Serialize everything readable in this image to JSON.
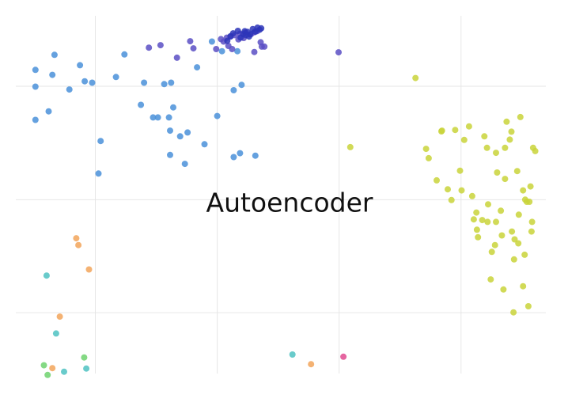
{
  "chart_data": {
    "type": "scatter",
    "title": "Autoencoder",
    "xlabel": "",
    "ylabel": "",
    "xlim": [
      0,
      100
    ],
    "ylim": [
      0,
      100
    ],
    "grid": true,
    "x_gridlines": [
      15,
      38,
      61,
      84
    ],
    "y_gridlines": [
      17,
      48.6,
      80.3
    ],
    "legend": "none",
    "series": [
      {
        "color": "#4a90d9",
        "points": [
          [
            3.7,
            80.2
          ],
          [
            3.7,
            84.9
          ],
          [
            3.7,
            70.9
          ],
          [
            6.2,
            73.3
          ],
          [
            6.9,
            83.5
          ],
          [
            7.3,
            89.1
          ],
          [
            10.1,
            79.4
          ],
          [
            12.1,
            86.2
          ],
          [
            13,
            81.7
          ],
          [
            14.4,
            81.3
          ],
          [
            15.6,
            55.9
          ],
          [
            16,
            65
          ],
          [
            18.9,
            82.9
          ],
          [
            20.5,
            89.2
          ],
          [
            23.6,
            75.1
          ],
          [
            24.2,
            81.3
          ],
          [
            25.9,
            71.6
          ],
          [
            26.8,
            71.6
          ],
          [
            28,
            80.9
          ],
          [
            28.9,
            71.6
          ],
          [
            29.1,
            67.9
          ],
          [
            29.1,
            61.1
          ],
          [
            29.3,
            81.3
          ],
          [
            29.7,
            74.4
          ],
          [
            31,
            66.3
          ],
          [
            31.9,
            58.6
          ],
          [
            32.4,
            67.4
          ],
          [
            34.2,
            85.6
          ],
          [
            35.6,
            64.1
          ],
          [
            37,
            92.8
          ],
          [
            38,
            72
          ],
          [
            38.9,
            90.1
          ],
          [
            41.1,
            79.2
          ],
          [
            41.1,
            60.5
          ],
          [
            41.8,
            90.1
          ],
          [
            42.3,
            61.6
          ],
          [
            42.6,
            80.7
          ],
          [
            45.2,
            60.9
          ]
        ]
      },
      {
        "color": "#5b4fc4",
        "points": [
          [
            25.1,
            91.1
          ],
          [
            27.3,
            91.8
          ],
          [
            30.4,
            88.3
          ],
          [
            32.9,
            92.9
          ],
          [
            33.5,
            90.9
          ],
          [
            37.8,
            90.7
          ],
          [
            38.7,
            93.5
          ],
          [
            39.2,
            92.8
          ],
          [
            39.8,
            93.9
          ],
          [
            40.1,
            91.6
          ],
          [
            40.5,
            94.2
          ],
          [
            40.8,
            90.7
          ],
          [
            41.3,
            94.6
          ],
          [
            42,
            93.4
          ],
          [
            42.3,
            95
          ],
          [
            43,
            93.8
          ],
          [
            43.3,
            95.3
          ],
          [
            44.4,
            94.9
          ],
          [
            45,
            95.4
          ],
          [
            45.5,
            95.7
          ],
          [
            45,
            89.9
          ],
          [
            46.4,
            91.4
          ],
          [
            46.9,
            91.4
          ],
          [
            46.2,
            92.6
          ],
          [
            60.9,
            89.8
          ]
        ]
      },
      {
        "color": "#2d35b8",
        "points": [
          [
            39.9,
            93
          ],
          [
            40.5,
            94.3
          ],
          [
            41,
            95.1
          ],
          [
            41.9,
            95.8
          ],
          [
            42.4,
            93.9
          ],
          [
            42.9,
            94.9
          ],
          [
            43.2,
            95.7
          ],
          [
            43.7,
            95.5
          ],
          [
            44.2,
            94.8
          ],
          [
            44.7,
            96.3
          ],
          [
            45.2,
            95.6
          ],
          [
            45.6,
            96.7
          ],
          [
            46,
            96.1
          ],
          [
            46.3,
            96.5
          ],
          [
            44,
            94.2
          ],
          [
            43.4,
            94.6
          ]
        ]
      },
      {
        "color": "#c9d33a",
        "points": [
          [
            75.4,
            82.6
          ],
          [
            63.1,
            63.3
          ],
          [
            77.4,
            62.8
          ],
          [
            77.9,
            60.2
          ],
          [
            79.4,
            54
          ],
          [
            80.3,
            67.7
          ],
          [
            80.4,
            67.9
          ],
          [
            81.5,
            51.5
          ],
          [
            82.2,
            48.5
          ],
          [
            82.9,
            68.1
          ],
          [
            83.8,
            56.7
          ],
          [
            84.1,
            51.2
          ],
          [
            84.6,
            65.3
          ],
          [
            85.5,
            69.1
          ],
          [
            86.1,
            49.6
          ],
          [
            86.4,
            43.1
          ],
          [
            86.9,
            45
          ],
          [
            87,
            40.2
          ],
          [
            87.2,
            38.1
          ],
          [
            88,
            42.9
          ],
          [
            88.4,
            66.3
          ],
          [
            88.9,
            63.1
          ],
          [
            89,
            42.4
          ],
          [
            89.1,
            47.3
          ],
          [
            89.6,
            26.3
          ],
          [
            89.8,
            34
          ],
          [
            90.4,
            35.9
          ],
          [
            90.6,
            42.4
          ],
          [
            90.8,
            56.2
          ],
          [
            91.5,
            45.5
          ],
          [
            91.7,
            38.6
          ],
          [
            92,
            23.5
          ],
          [
            92.3,
            54.4
          ],
          [
            92.3,
            63.1
          ],
          [
            93.2,
            65.4
          ],
          [
            93.5,
            67.6
          ],
          [
            93.6,
            39.7
          ],
          [
            93.9,
            17.1
          ],
          [
            94,
            31.9
          ],
          [
            94.1,
            37.5
          ],
          [
            94.6,
            56.6
          ],
          [
            94.8,
            36.4
          ],
          [
            94.9,
            44.4
          ],
          [
            95.2,
            71.7
          ],
          [
            95.7,
            51.2
          ],
          [
            95.7,
            24.4
          ],
          [
            96,
            33.2
          ],
          [
            96.1,
            48.6
          ],
          [
            96.4,
            48
          ],
          [
            96.7,
            18.8
          ],
          [
            96.9,
            48
          ],
          [
            97.1,
            52.3
          ],
          [
            97.3,
            39.7
          ],
          [
            97.4,
            42.4
          ],
          [
            98,
            62.2
          ],
          [
            97.6,
            63.1
          ],
          [
            90.6,
            61.7
          ],
          [
            92.6,
            70.4
          ]
        ]
      },
      {
        "color": "#f2a55a",
        "points": [
          [
            11.4,
            37.8
          ],
          [
            11.8,
            35.9
          ],
          [
            13.8,
            29.1
          ],
          [
            8.3,
            15.9
          ],
          [
            6.9,
            1.5
          ],
          [
            55.7,
            2.6
          ]
        ]
      },
      {
        "color": "#4fc2c2",
        "points": [
          [
            5.8,
            27.4
          ],
          [
            7.6,
            11.2
          ],
          [
            9.1,
            0.5
          ],
          [
            13.3,
            1.4
          ],
          [
            52.2,
            5.3
          ]
        ]
      },
      {
        "color": "#6fd26f",
        "points": [
          [
            5.3,
            2.3
          ],
          [
            6,
            -0.4
          ],
          [
            12.9,
            4.5
          ]
        ]
      },
      {
        "color": "#e04a8f",
        "points": [
          [
            61.8,
            4.7
          ]
        ]
      }
    ]
  }
}
